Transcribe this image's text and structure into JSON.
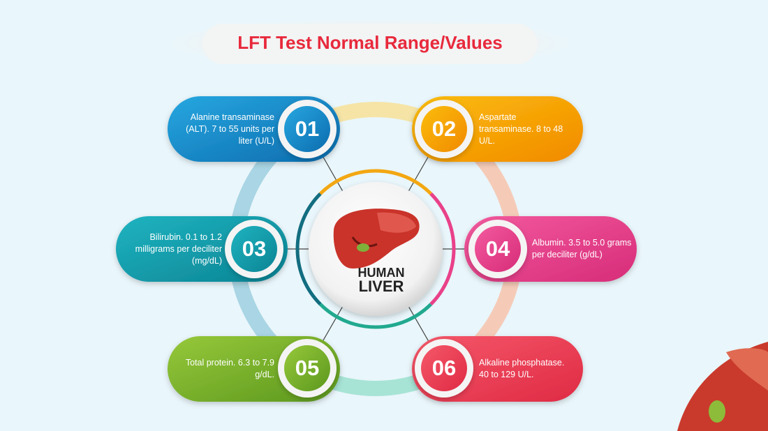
{
  "header": {
    "title": "LFT Test Normal Range/Values"
  },
  "center": {
    "line1": "HUMAN",
    "line2": "LIVER"
  },
  "items": [
    {
      "number": "01",
      "text": "Alanine transaminase (ALT). 7 to 55 units per liter (U/L)"
    },
    {
      "number": "02",
      "text": "Aspartate transaminase. 8 to 48 U/L."
    },
    {
      "number": "03",
      "text": "Bilirubin. 0.1 to 1.2 milligrams per deciliter (mg/dL)"
    },
    {
      "number": "04",
      "text": "Albumin. 3.5 to 5.0 grams per deciliter (g/dL)"
    },
    {
      "number": "05",
      "text": "Total protein. 6.3 to 7.9 g/dL."
    },
    {
      "number": "06",
      "text": "Alkaline phosphatase. 40 to 129 U/L."
    }
  ]
}
